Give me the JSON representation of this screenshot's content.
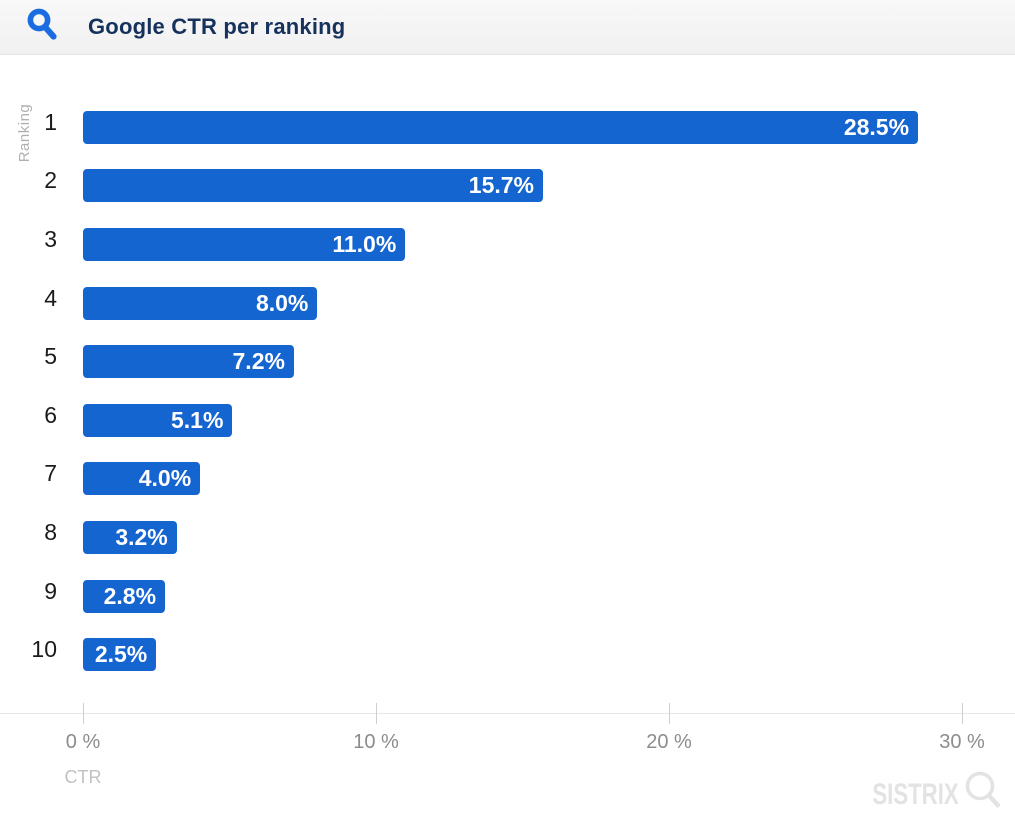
{
  "header": {
    "title": "Google CTR per ranking",
    "icon_color": "#1b6ce1"
  },
  "chart_data": {
    "type": "bar",
    "orientation": "horizontal",
    "title": "Google CTR per ranking",
    "categories": [
      "1",
      "2",
      "3",
      "4",
      "5",
      "6",
      "7",
      "8",
      "9",
      "10"
    ],
    "values": [
      28.5,
      15.7,
      11.0,
      8.0,
      7.2,
      5.1,
      4.0,
      3.2,
      2.8,
      2.5
    ],
    "bar_labels": [
      "28.5%",
      "15.7%",
      "11.0%",
      "8.0%",
      "7.2%",
      "5.1%",
      "4.0%",
      "3.2%",
      "2.8%",
      "2.5%"
    ],
    "ylabel": "Ranking",
    "xlabel": "CTR",
    "xlim": [
      0,
      31.8
    ],
    "x_ticks": [
      "0 %",
      "10 %",
      "20 %",
      "30 %"
    ],
    "x_tick_values": [
      0,
      10,
      20,
      30
    ],
    "bar_color": "#1565d1",
    "grid": false,
    "legend": false
  },
  "footer": {
    "brand": "SISTRIX"
  }
}
